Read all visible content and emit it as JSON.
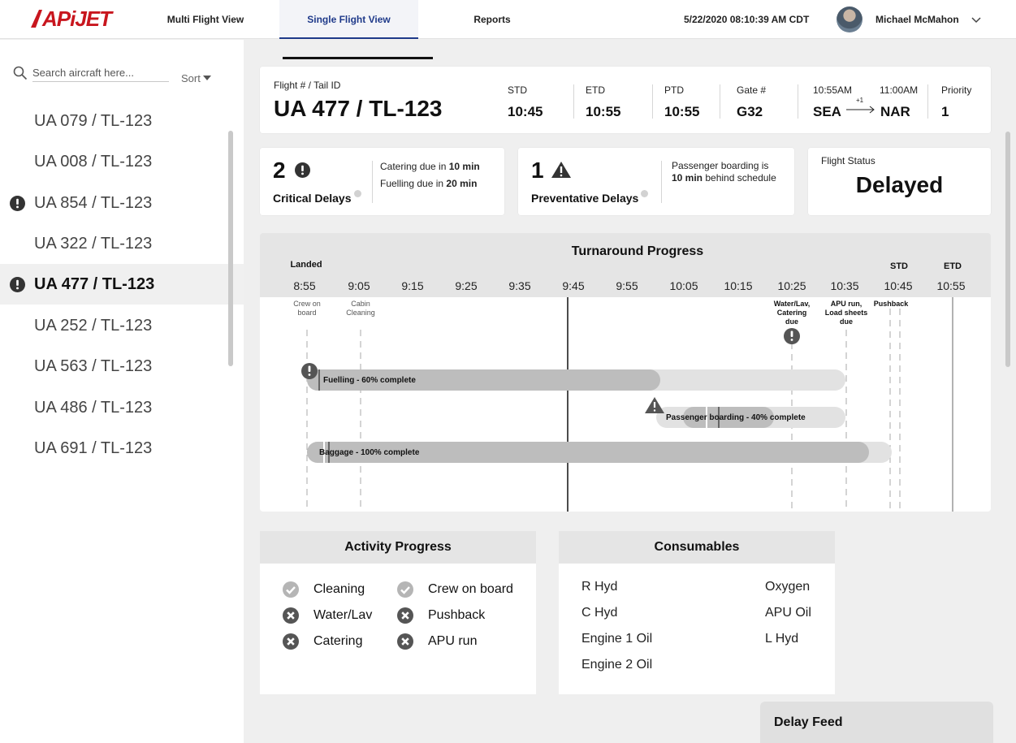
{
  "app": {
    "logo_text": "APiJET",
    "brand_color": "#c8161e",
    "accent_color": "#1f3a8a"
  },
  "nav": {
    "tabs": [
      {
        "label": "Multi Flight View",
        "active": false
      },
      {
        "label": "Single Flight View",
        "active": true
      },
      {
        "label": "Reports",
        "active": false
      }
    ],
    "datetime": "5/22/2020 08:10:39 AM CDT",
    "user": {
      "name": "Michael McMahon",
      "avatar_icon": "user-photo"
    }
  },
  "sidebar": {
    "search_placeholder": "Search aircraft here...",
    "sort_label": "Sort",
    "aircraft": [
      {
        "label": "UA 079 / TL-123",
        "alert": false,
        "selected": false
      },
      {
        "label": "UA 008 / TL-123",
        "alert": false,
        "selected": false
      },
      {
        "label": "UA 854 / TL-123",
        "alert": true,
        "selected": false
      },
      {
        "label": "UA 322 / TL-123",
        "alert": false,
        "selected": false
      },
      {
        "label": "UA 477 / TL-123",
        "alert": true,
        "selected": true
      },
      {
        "label": "UA 252 / TL-123",
        "alert": false,
        "selected": false
      },
      {
        "label": "UA 563 / TL-123",
        "alert": false,
        "selected": false
      },
      {
        "label": "UA 486 / TL-123",
        "alert": false,
        "selected": false
      },
      {
        "label": "UA 691 / TL-123",
        "alert": false,
        "selected": false
      }
    ]
  },
  "flight": {
    "id_label": "Flight # / Tail ID",
    "id_value": "UA 477 / TL-123",
    "std_label": "STD",
    "std_value": "10:45",
    "etd_label": "ETD",
    "etd_value": "10:55",
    "ptd_label": "PTD",
    "ptd_value": "10:55",
    "gate_label": "Gate #",
    "gate_value": "G32",
    "dep_time": "10:55AM",
    "arr_time": "11:00AM",
    "origin": "SEA",
    "destination": "NAR",
    "day_offset": "+1",
    "priority_label": "Priority",
    "priority_value": "1"
  },
  "delays": {
    "critical": {
      "count": "2",
      "title": "Critical Delays",
      "line1_pre": "Catering due in ",
      "line1_bold": "10 min",
      "line2_pre": "Fuelling due in ",
      "line2_bold": "20 min"
    },
    "preventative": {
      "count": "1",
      "title": "Preventative Delays",
      "line1": "Passenger boarding is",
      "line2_bold": "10 min",
      "line2_post": " behind schedule"
    },
    "status_label": "Flight Status",
    "status_value": "Delayed"
  },
  "turnaround": {
    "title": "Turnaround Progress",
    "times": [
      "8:55",
      "9:05",
      "9:15",
      "9:25",
      "9:35",
      "9:45",
      "9:55",
      "10:05",
      "10:15",
      "10:25",
      "10:35",
      "10:45",
      "10:55"
    ],
    "landed_label": "Landed",
    "std_label": "STD",
    "etd_label": "ETD",
    "now_time": "9:45",
    "milestones": [
      {
        "time": "8:55",
        "label": "Crew on board",
        "lines": [
          "Crew on",
          "board"
        ],
        "bold": false
      },
      {
        "time": "9:05",
        "label": "Cabin Cleaning",
        "lines": [
          "Cabin",
          "Cleaning"
        ],
        "bold": false
      },
      {
        "time": "10:25",
        "label": "Water/Lav, Catering due",
        "lines": [
          "Water/Lav,",
          "Catering",
          "due"
        ],
        "bold": true,
        "alert": true
      },
      {
        "time": "10:35",
        "label": "APU run, Load sheets due",
        "lines": [
          "APU run,",
          "Load sheets",
          "due"
        ],
        "bold": true
      },
      {
        "time": "10:45",
        "label": "Pushback",
        "lines": [
          "Pushback"
        ],
        "bold": true
      }
    ],
    "tasks": [
      {
        "label": "Fuelling - 60% complete",
        "percent": 60,
        "start": "8:55",
        "end": "10:35",
        "progress_end": "10:01",
        "marker": "alert-circle"
      },
      {
        "label": "Passenger boarding - 40% complete",
        "percent": 40,
        "start": "10:00",
        "end": "10:35",
        "progress_start": "10:05",
        "progress_end": "10:22",
        "marker": "warning-triangle"
      },
      {
        "label": "Baggage - 100% complete",
        "percent": 100,
        "start": "8:55",
        "end": "10:43",
        "progress_end": "10:40",
        "marker": "none"
      }
    ]
  },
  "activity": {
    "title": "Activity Progress",
    "items": [
      {
        "label": "Cleaning",
        "done": true
      },
      {
        "label": "Crew on board",
        "done": true
      },
      {
        "label": "Water/Lav",
        "done": false
      },
      {
        "label": "Pushback",
        "done": false
      },
      {
        "label": "Catering",
        "done": false
      },
      {
        "label": "APU run",
        "done": false
      }
    ]
  },
  "consumables": {
    "title": "Consumables",
    "items": [
      "R Hyd",
      "Oxygen",
      "C Hyd",
      "APU Oil",
      "Engine 1 Oil",
      "L Hyd",
      "Engine 2 Oil"
    ]
  },
  "delay_feed": {
    "title": "Delay Feed"
  }
}
